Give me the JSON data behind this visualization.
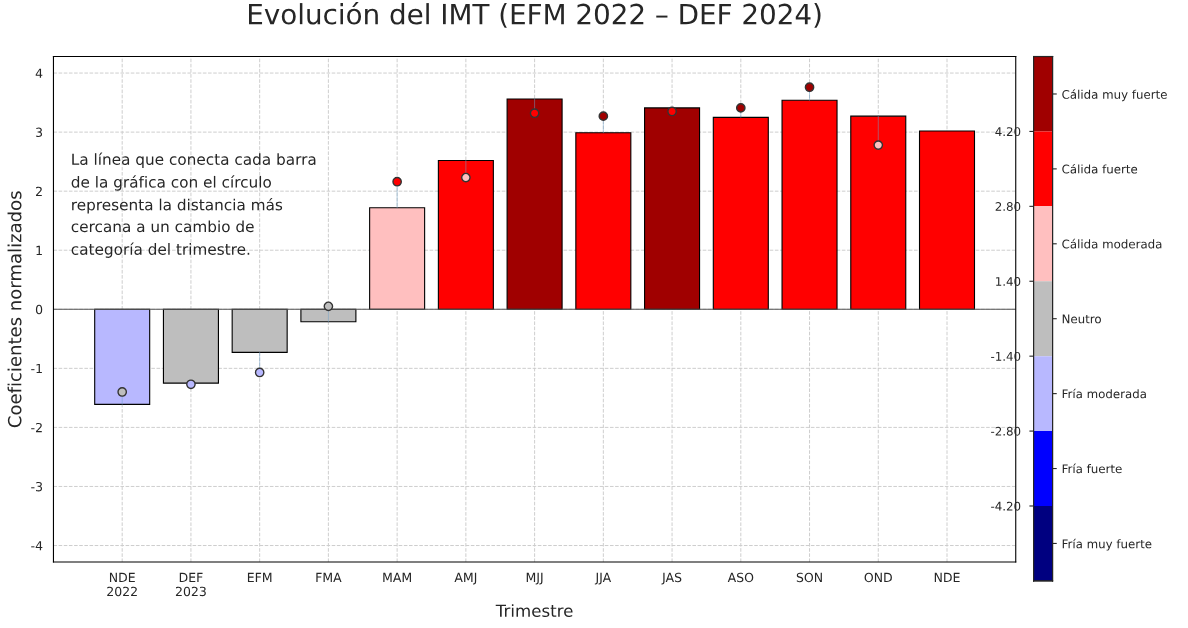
{
  "chart_data": [
    {
      "type": "bar",
      "title": "Evolución del IMT (EFM 2022 – DEF 2024)",
      "xlabel": "Trimestre",
      "ylabel": "Coeficientes normalizados",
      "categories": [
        "NDE\n2022",
        "DEF\n2023",
        "EFM",
        "FMA",
        "MAM",
        "AMJ",
        "MJJ",
        "JJA",
        "JAS",
        "ASO",
        "SON",
        "OND",
        "NDE"
      ],
      "series": [
        {
          "type": "bar",
          "values": [
            -1.61,
            -1.25,
            -0.73,
            -0.21,
            1.72,
            2.52,
            3.56,
            2.99,
            3.41,
            3.25,
            3.54,
            3.27,
            3.02
          ],
          "colors": [
            "#b8b8ff",
            "#bebebe",
            "#bebebe",
            "#bebebe",
            "#ffbfbf",
            "#ff0000",
            "#a00000",
            "#ff0000",
            "#a00000",
            "#ff0000",
            "#ff0000",
            "#ff0000",
            "#ff0000"
          ]
        },
        {
          "type": "scatter",
          "values": [
            -1.4,
            -1.27,
            -1.07,
            0.05,
            2.16,
            2.23,
            3.32,
            3.27,
            3.35,
            3.41,
            3.76,
            2.78,
            null
          ],
          "colors": [
            "#bebebe",
            "#b8b8ff",
            "#b8b8ff",
            "#bebebe",
            "#ff0000",
            "#ffbfbf",
            "#ff0000",
            "#a00000",
            "#ff0000",
            "#a00000",
            "#a00000",
            "#ffbfbf",
            null
          ]
        }
      ],
      "ylim": [
        -4.28,
        4.28
      ],
      "yticks": [
        -4,
        -3,
        -2,
        -1,
        0,
        1,
        2,
        3,
        4
      ],
      "grid": true,
      "marker": "circle",
      "annotations": [
        "La línea que conecta cada barra\nde la gráfica con el círculo\nrepresenta la distancia más\ncercana a un cambio de\ncategoría del trimestre."
      ]
    },
    {
      "type": "other",
      "y_categories": [
        "Cálida muy fuerte",
        "Cálida fuerte",
        "Cálida moderada",
        "Neutro",
        "Fría moderada",
        "Fría fuerte",
        "Fría muy fuerte"
      ],
      "colors": [
        "#a00000",
        "#ff0000",
        "#ffbfbf",
        "#bebebe",
        "#b8b8ff",
        "#0000ff",
        "#000080"
      ],
      "y2_categories": [
        "4.20",
        "2.80",
        "1.40",
        "-1.40",
        "-2.80",
        "-4.20"
      ]
    }
  ]
}
